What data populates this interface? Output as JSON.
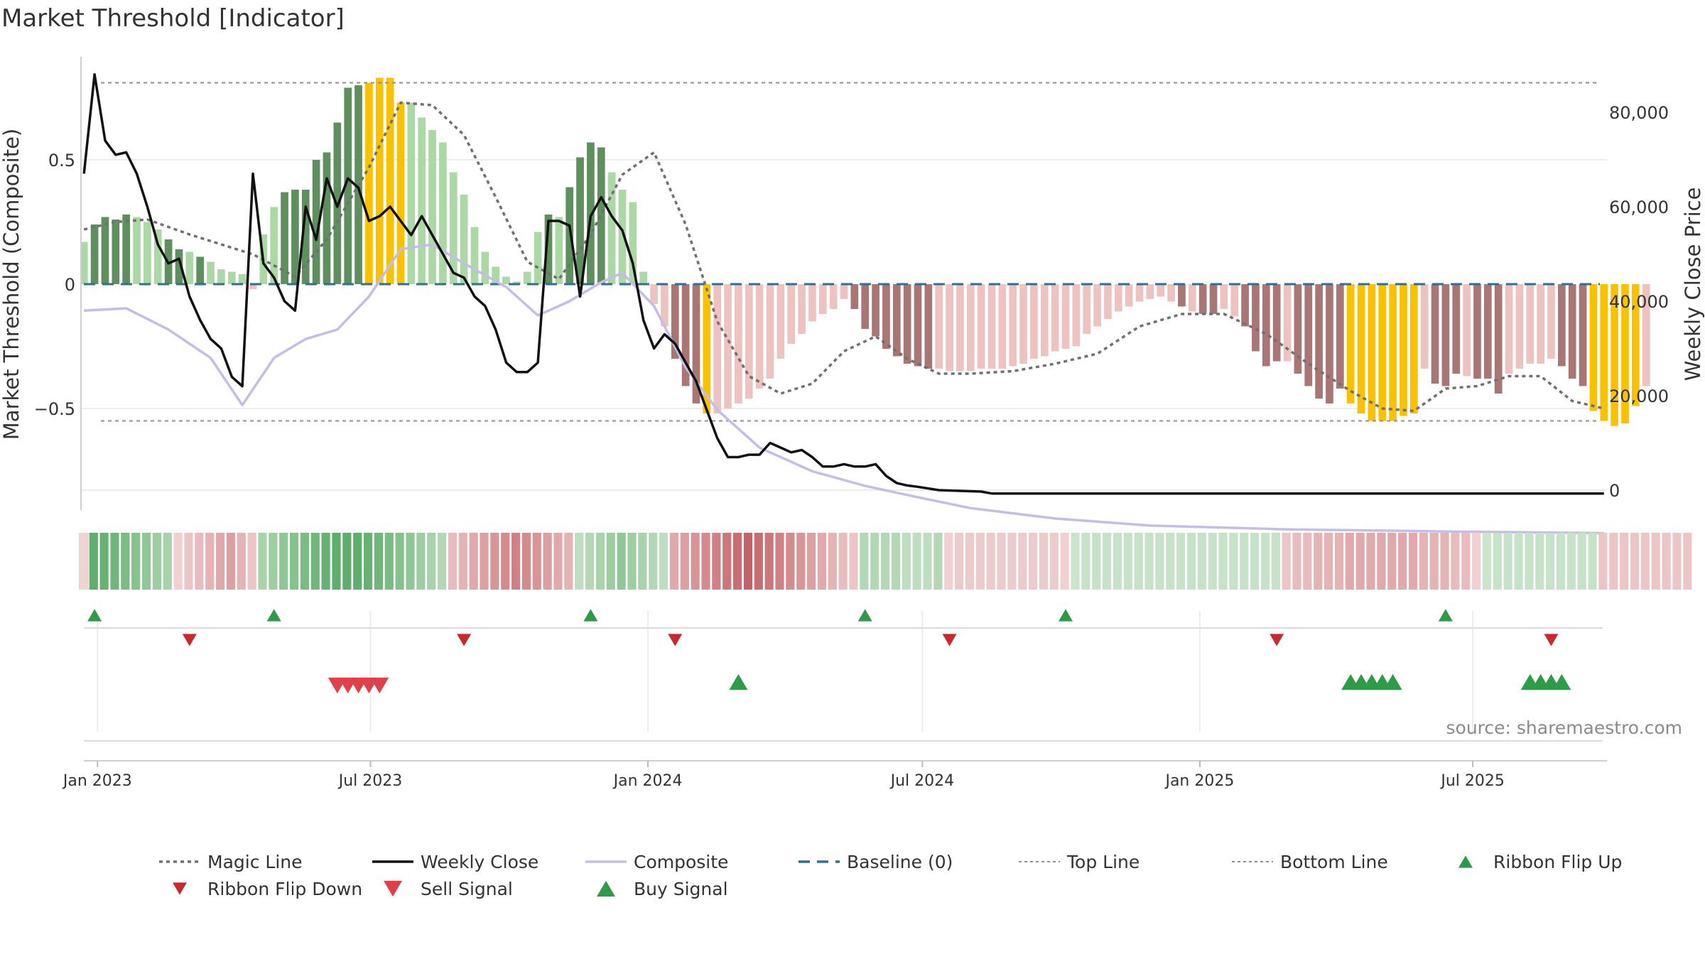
{
  "title": "Market Threshold [Indicator]",
  "source_label": "source: sharemaestro.com",
  "colors": {
    "up_strong": "#5f8f5f",
    "up_light": "#acd8a6",
    "down_strong": "#a97676",
    "down_light": "#ecc3c1",
    "extreme": "#f8c200",
    "magic": "#707070",
    "close": "#111111",
    "composite": "#c3bde8",
    "baseline": "#2d6f95",
    "threshold": "#909090",
    "flip_up": "#2e9a47",
    "flip_down": "#c8292f",
    "sell": "#e0404a",
    "buy": "#2f9a48"
  },
  "chart_data": {
    "type": "bar",
    "title": "Market Threshold [Indicator]",
    "ylabel_left": "Market Threshold (Composite)",
    "ylabel_right": "Weekly Close Price",
    "x_ticks": [
      "Jan 2023",
      "Jul 2023",
      "Jan 2024",
      "Jul 2024",
      "Jan 2025",
      "Jul 2025"
    ],
    "y_left_ticks": [
      "0.5",
      "0",
      "−0.5"
    ],
    "y_right_ticks": [
      "80,000",
      "60,000",
      "40,000",
      "20,000",
      "0"
    ],
    "x_range": [
      "2022-12-21",
      "2025-09-28"
    ],
    "ylim_left": [
      -0.92,
      0.92
    ],
    "ylim_right": [
      -1000,
      95000
    ],
    "top_line": 0.81,
    "bottom_line": -0.55,
    "composite_bars": {
      "start": "2022-12-23",
      "step_days": 7,
      "values": [
        0.17,
        0.24,
        0.27,
        0.26,
        0.28,
        0.27,
        0.25,
        0.22,
        0.18,
        0.14,
        0.13,
        0.11,
        0.09,
        0.06,
        0.05,
        0.04,
        -0.02,
        0.2,
        0.31,
        0.37,
        0.38,
        0.38,
        0.5,
        0.53,
        0.65,
        0.79,
        0.8,
        0.81,
        0.83,
        0.83,
        0.73,
        0.73,
        0.67,
        0.62,
        0.57,
        0.45,
        0.36,
        0.23,
        0.13,
        0.07,
        0.03,
        0.01,
        0.05,
        0.21,
        0.28,
        0.27,
        0.39,
        0.51,
        0.57,
        0.55,
        0.45,
        0.38,
        0.33,
        0.05,
        -0.08,
        -0.17,
        -0.3,
        -0.41,
        -0.48,
        -0.52,
        -0.52,
        -0.5,
        -0.48,
        -0.46,
        -0.42,
        -0.38,
        -0.3,
        -0.24,
        -0.2,
        -0.15,
        -0.12,
        -0.1,
        -0.06,
        -0.1,
        -0.18,
        -0.21,
        -0.26,
        -0.29,
        -0.32,
        -0.33,
        -0.34,
        -0.34,
        -0.35,
        -0.35,
        -0.35,
        -0.34,
        -0.34,
        -0.34,
        -0.33,
        -0.32,
        -0.3,
        -0.29,
        -0.27,
        -0.26,
        -0.25,
        -0.2,
        -0.17,
        -0.14,
        -0.11,
        -0.09,
        -0.07,
        -0.06,
        -0.05,
        -0.07,
        -0.09,
        -0.11,
        -0.12,
        -0.12,
        -0.1,
        -0.13,
        -0.17,
        -0.27,
        -0.33,
        -0.31,
        -0.31,
        -0.36,
        -0.41,
        -0.46,
        -0.48,
        -0.42,
        -0.48,
        -0.52,
        -0.55,
        -0.55,
        -0.55,
        -0.53,
        -0.52,
        -0.34,
        -0.4,
        -0.41,
        -0.36,
        -0.37,
        -0.38,
        -0.38,
        -0.44,
        -0.36,
        -0.34,
        -0.32,
        -0.32,
        -0.3,
        -0.33,
        -0.38,
        -0.41,
        -0.51,
        -0.55,
        -0.57,
        -0.56,
        -0.49,
        -0.41
      ],
      "styles": [
        "ul",
        "us",
        "us",
        "us",
        "us",
        "ul",
        "ul",
        "ul",
        "us",
        "us",
        "ul",
        "us",
        "ul",
        "ul",
        "ul",
        "ul",
        "dl",
        "ul",
        "ul",
        "us",
        "us",
        "us",
        "us",
        "us",
        "us",
        "us",
        "us",
        "ex",
        "ex",
        "ex",
        "ex",
        "ul",
        "ul",
        "ul",
        "ul",
        "ul",
        "ul",
        "ul",
        "ul",
        "ul",
        "ul",
        "ul",
        "ul",
        "ul",
        "us",
        "ul",
        "us",
        "us",
        "us",
        "us",
        "ul",
        "ul",
        "ul",
        "ul",
        "dl",
        "dl",
        "ds",
        "ds",
        "ds",
        "ex",
        "dl",
        "dl",
        "dl",
        "dl",
        "dl",
        "dl",
        "dl",
        "dl",
        "dl",
        "dl",
        "dl",
        "dl",
        "dl",
        "ds",
        "ds",
        "ds",
        "ds",
        "ds",
        "ds",
        "ds",
        "ds",
        "dl",
        "dl",
        "dl",
        "dl",
        "dl",
        "dl",
        "dl",
        "dl",
        "dl",
        "dl",
        "dl",
        "dl",
        "dl",
        "dl",
        "dl",
        "dl",
        "dl",
        "dl",
        "dl",
        "dl",
        "dl",
        "dl",
        "dl",
        "ds",
        "dl",
        "ds",
        "ds",
        "dl",
        "dl",
        "ds",
        "ds",
        "ds",
        "ds",
        "dl",
        "ds",
        "ds",
        "ds",
        "ds",
        "ds",
        "ex",
        "ex",
        "ex",
        "ex",
        "ex",
        "ex",
        "ex",
        "dl",
        "ds",
        "ds",
        "ds",
        "dl",
        "ds",
        "ds",
        "ds",
        "dl",
        "dl",
        "dl",
        "dl",
        "dl",
        "ds",
        "ds",
        "ds",
        "ex",
        "ex",
        "ex",
        "ex",
        "ex",
        "dl"
      ]
    },
    "magic_line": {
      "x": [
        "2022-12-23",
        "2023-01-13",
        "2023-02-03",
        "2023-03-03",
        "2023-04-14",
        "2023-05-12",
        "2023-06-02",
        "2023-06-30",
        "2023-07-21",
        "2023-08-11",
        "2023-09-01",
        "2023-09-22",
        "2023-10-13",
        "2023-11-03",
        "2023-11-24",
        "2023-12-15",
        "2024-01-05",
        "2024-01-26",
        "2024-02-16",
        "2024-03-08",
        "2024-03-29",
        "2024-04-19",
        "2024-05-10",
        "2024-05-31",
        "2024-06-21",
        "2024-07-12",
        "2024-08-02",
        "2024-08-30",
        "2024-09-27",
        "2024-10-25",
        "2024-11-22",
        "2024-12-20",
        "2025-01-17",
        "2025-02-14",
        "2025-03-14",
        "2025-04-11",
        "2025-05-02",
        "2025-05-23",
        "2025-06-13",
        "2025-07-04",
        "2025-07-25",
        "2025-08-15",
        "2025-09-05",
        "2025-09-26"
      ],
      "y": [
        0.22,
        0.25,
        0.26,
        0.2,
        0.12,
        0.03,
        0.18,
        0.47,
        0.73,
        0.72,
        0.6,
        0.35,
        0.09,
        0.02,
        0.2,
        0.44,
        0.53,
        0.24,
        -0.15,
        -0.37,
        -0.44,
        -0.4,
        -0.27,
        -0.21,
        -0.3,
        -0.36,
        -0.36,
        -0.35,
        -0.32,
        -0.28,
        -0.17,
        -0.12,
        -0.12,
        -0.2,
        -0.32,
        -0.43,
        -0.5,
        -0.51,
        -0.42,
        -0.41,
        -0.37,
        -0.37,
        -0.47,
        -0.5
      ]
    },
    "composite_line": {
      "x": [
        "2022-12-23",
        "2023-01-20",
        "2023-02-17",
        "2023-03-17",
        "2023-04-07",
        "2023-04-28",
        "2023-05-19",
        "2023-06-09",
        "2023-06-30",
        "2023-07-21",
        "2023-08-11",
        "2023-09-01",
        "2023-09-29",
        "2023-10-20",
        "2023-11-10",
        "2023-12-01",
        "2023-12-15",
        "2024-01-05",
        "2024-01-26",
        "2024-02-16",
        "2024-03-15",
        "2024-04-19",
        "2024-05-24",
        "2024-06-28",
        "2024-08-02",
        "2024-09-27",
        "2024-11-29",
        "2025-02-28",
        "2025-06-27",
        "2025-09-26"
      ],
      "y": [
        38000,
        38500,
        34000,
        28000,
        18000,
        28000,
        32000,
        34000,
        41000,
        51000,
        52000,
        48000,
        43000,
        37000,
        40000,
        44000,
        46000,
        39000,
        26000,
        17000,
        9000,
        4000,
        900,
        -1500,
        -3800,
        -6000,
        -7500,
        -8300,
        -8800,
        -9100
      ]
    },
    "weekly_close": {
      "x": [
        "2022-12-23",
        "2022-12-30",
        "2023-01-06",
        "2023-01-13",
        "2023-01-20",
        "2023-01-27",
        "2023-02-03",
        "2023-02-10",
        "2023-02-17",
        "2023-02-24",
        "2023-03-03",
        "2023-03-10",
        "2023-03-17",
        "2023-03-24",
        "2023-03-31",
        "2023-04-07",
        "2023-04-14",
        "2023-04-21",
        "2023-04-28",
        "2023-05-05",
        "2023-05-12",
        "2023-05-19",
        "2023-05-26",
        "2023-06-02",
        "2023-06-09",
        "2023-06-16",
        "2023-06-23",
        "2023-06-30",
        "2023-07-07",
        "2023-07-14",
        "2023-07-21",
        "2023-07-28",
        "2023-08-04",
        "2023-08-11",
        "2023-08-18",
        "2023-08-25",
        "2023-09-01",
        "2023-09-08",
        "2023-09-15",
        "2023-09-22",
        "2023-09-29",
        "2023-10-06",
        "2023-10-13",
        "2023-10-20",
        "2023-10-27",
        "2023-11-03",
        "2023-11-10",
        "2023-11-17",
        "2023-11-24",
        "2023-12-01",
        "2023-12-08",
        "2023-12-15",
        "2023-12-22",
        "2023-12-29",
        "2024-01-05",
        "2024-01-12",
        "2024-01-19",
        "2024-01-26",
        "2024-02-02",
        "2024-02-09",
        "2024-02-16",
        "2024-02-23",
        "2024-03-01",
        "2024-03-08",
        "2024-03-15",
        "2024-03-22",
        "2024-03-29",
        "2024-04-05",
        "2024-04-12",
        "2024-04-19",
        "2024-04-26",
        "2024-05-03",
        "2024-05-10",
        "2024-05-17",
        "2024-05-24",
        "2024-05-31",
        "2024-06-07",
        "2024-06-14",
        "2024-06-21",
        "2024-06-28",
        "2024-07-12",
        "2024-08-09",
        "2024-08-16",
        "2025-09-26"
      ],
      "y": [
        67000,
        88000,
        74000,
        71000,
        71500,
        67000,
        60000,
        52000,
        48000,
        49000,
        41000,
        36000,
        32000,
        30000,
        24000,
        22000,
        67000,
        48000,
        45000,
        40000,
        38000,
        60000,
        53000,
        66000,
        60000,
        66000,
        64000,
        57000,
        58000,
        60000,
        57000,
        54000,
        58000,
        54000,
        50000,
        46000,
        45000,
        41000,
        39000,
        34000,
        27000,
        25000,
        25000,
        27000,
        57000,
        57000,
        56000,
        41000,
        58000,
        62000,
        58000,
        55000,
        48000,
        36000,
        30000,
        33000,
        31000,
        27000,
        23000,
        17000,
        11000,
        7000,
        7000,
        7500,
        7500,
        10000,
        9000,
        8000,
        8500,
        7000,
        5000,
        5000,
        5500,
        5000,
        5000,
        5500,
        3000,
        1500,
        1000,
        700,
        0,
        -300,
        -700,
        -700
      ]
    },
    "ribbon": {
      "start": "2022-12-23",
      "step_days": 7,
      "cells": [
        "#f1d3d4",
        "#5fae6d",
        "#67b272",
        "#71b77b",
        "#7bbc84",
        "#86c28d",
        "#91c797",
        "#9dcda1",
        "#a8d3ab",
        "#f0d0d1",
        "#ecc6c7",
        "#e8bcbe",
        "#e4b3b4",
        "#e0a9ab",
        "#dc9fa2",
        "#e4b3b4",
        "#ecc6c7",
        "#a8d3ab",
        "#9dcda1",
        "#91c797",
        "#86c28d",
        "#7bbc84",
        "#71b77b",
        "#67b272",
        "#5fae6d",
        "#5fae6d",
        "#5fae6d",
        "#67b272",
        "#71b77b",
        "#7bbc84",
        "#86c28d",
        "#91c797",
        "#9dcda1",
        "#a8d3ab",
        "#b4d8b6",
        "#e8bcbe",
        "#e4b3b4",
        "#e0a9ab",
        "#dc9fa2",
        "#d89598",
        "#d48b8e",
        "#d08185",
        "#d48b8e",
        "#d89598",
        "#dc9fa2",
        "#e0a9ab",
        "#e4b3b4",
        "#bfdec1",
        "#b4d8b6",
        "#a8d3ab",
        "#9dcda1",
        "#91c797",
        "#9dcda1",
        "#a8d3ab",
        "#b4d8b6",
        "#bfdec1",
        "#e0a9ab",
        "#dc9fa2",
        "#d89598",
        "#d48b8e",
        "#d08185",
        "#cc777b",
        "#c86d71",
        "#c46367",
        "#c86d71",
        "#cc777b",
        "#d08185",
        "#d48b8e",
        "#d89598",
        "#dc9fa2",
        "#e0a9ab",
        "#e4b3b4",
        "#e8bcbe",
        "#ecc6c7",
        "#b4d8b6",
        "#b4d8b6",
        "#b4d8b6",
        "#b4d8b6",
        "#bfdec1",
        "#bfdec1",
        "#bfdec1",
        "#b4d8b6",
        "#f0d0d1",
        "#eccbcc",
        "#eccbcc",
        "#eccbcc",
        "#eccbcc",
        "#eccbcc",
        "#eccbcc",
        "#eccbcc",
        "#eccbcc",
        "#eccbcc",
        "#eccbcc",
        "#f0d0d1",
        "#cbe5cc",
        "#c6e2c8",
        "#c6e2c8",
        "#c6e2c8",
        "#c6e2c8",
        "#c6e2c8",
        "#c6e2c8",
        "#c6e2c8",
        "#c6e2c8",
        "#c6e2c8",
        "#c6e2c8",
        "#c6e2c8",
        "#c6e2c8",
        "#c6e2c8",
        "#c6e2c8",
        "#c6e2c8",
        "#c6e2c8",
        "#c6e2c8",
        "#c6e2c8",
        "#c6e2c8",
        "#ecc6c7",
        "#e8bcbe",
        "#e8bcbe",
        "#e4b3b4",
        "#e4b3b4",
        "#e4b3b4",
        "#e0a9ab",
        "#e0a9ab",
        "#e0a9ab",
        "#e0a9ab",
        "#e0a9ab",
        "#e0a9ab",
        "#e0a9ab",
        "#e4b3b4",
        "#e4b3b4",
        "#e4b3b4",
        "#e8bcbe",
        "#e8bcbe",
        "#f0d0d1",
        "#cbe5cc",
        "#c6e2c8",
        "#c6e2c8",
        "#c6e2c8",
        "#c6e2c8",
        "#c6e2c8",
        "#c6e2c8",
        "#c6e2c8",
        "#c6e2c8",
        "#c6e2c8",
        "#c6e2c8",
        "#ecc6c7",
        "#ecc6c7",
        "#ecc6c7",
        "#ecc6c7",
        "#ecc6c7",
        "#ecc6c7",
        "#ecc6c7",
        "#ecc6c7",
        "#ecc6c7"
      ]
    },
    "ribbon_flip_up": [
      "2022-12-30",
      "2023-04-28",
      "2023-11-24",
      "2024-05-24",
      "2024-10-04",
      "2025-06-13"
    ],
    "ribbon_flip_down": [
      "2023-03-03",
      "2023-09-01",
      "2024-01-19",
      "2024-07-19",
      "2025-02-21",
      "2025-08-22"
    ],
    "sell_signal": [
      "2023-06-09",
      "2023-06-16",
      "2023-06-23",
      "2023-06-30",
      "2023-07-07"
    ],
    "buy_signal": [
      "2024-03-01",
      "2025-04-11",
      "2025-04-18",
      "2025-04-25",
      "2025-05-02",
      "2025-05-09",
      "2025-08-08",
      "2025-08-15",
      "2025-08-22",
      "2025-08-29"
    ],
    "legend": [
      "Magic Line",
      "Weekly Close",
      "Composite",
      "Baseline (0)",
      "Top Line",
      "Bottom Line",
      "Ribbon Flip Up",
      "Ribbon Flip Down",
      "Sell Signal",
      "Buy Signal"
    ]
  }
}
